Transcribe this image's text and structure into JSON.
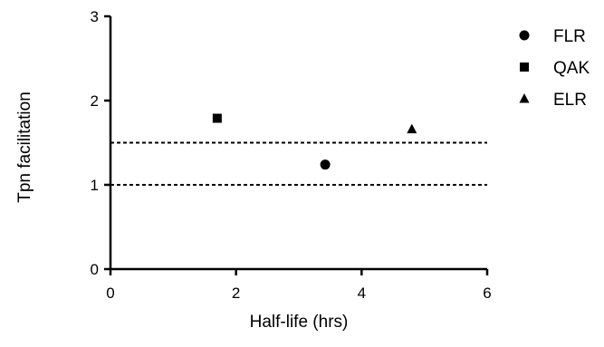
{
  "chart_data": {
    "type": "scatter",
    "title": "",
    "xlabel": "Half-life (hrs)",
    "ylabel": "Tpn facilitation",
    "xlim": [
      0,
      6
    ],
    "ylim": [
      0,
      3
    ],
    "x_ticks": [
      0,
      2,
      4,
      6
    ],
    "y_ticks": [
      0,
      1,
      2,
      3
    ],
    "x_tick_labels": [
      "0",
      "2",
      "4",
      "6"
    ],
    "y_tick_labels": [
      "0",
      "1",
      "2",
      "3"
    ],
    "grid": false,
    "legend_position": "top-right",
    "series": [
      {
        "name": "FLR",
        "marker": "circle",
        "x": [
          3.42
        ],
        "y": [
          1.24
        ]
      },
      {
        "name": "QAK",
        "marker": "square",
        "x": [
          1.7
        ],
        "y": [
          1.79
        ]
      },
      {
        "name": "ELR",
        "marker": "triangle",
        "x": [
          4.8
        ],
        "y": [
          1.66
        ]
      }
    ],
    "reference_lines": [
      {
        "axis": "y",
        "value": 1.0,
        "style": "dashed"
      },
      {
        "axis": "y",
        "value": 1.5,
        "style": "dashed"
      }
    ],
    "colors": {
      "marker": "#000000",
      "axis": "#000000"
    }
  }
}
